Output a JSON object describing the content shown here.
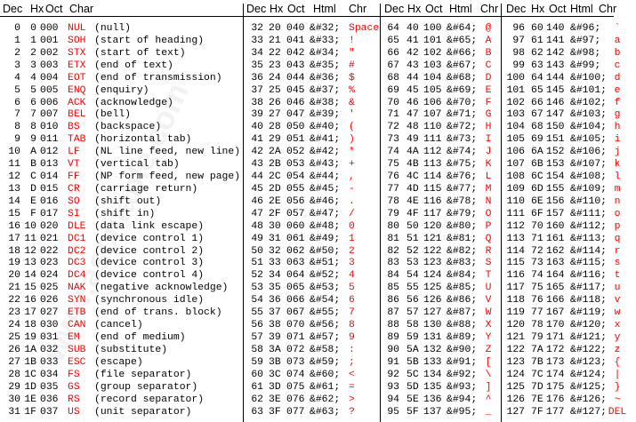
{
  "watermark": "www.asciitable.com",
  "colors": {
    "name": "#ff0000",
    "text": "#000000"
  },
  "headers": {
    "s1": [
      "Dec",
      "Hx",
      "Oct",
      "Char"
    ],
    "s2": [
      "Dec",
      "Hx",
      "Oct",
      "Html",
      "Chr"
    ],
    "s3": [
      "Dec",
      "Hx",
      "Oct",
      "Html",
      "Chr"
    ],
    "s4": [
      "Dec",
      "Hx",
      "Oct",
      "Html",
      "Chr"
    ]
  },
  "control": [
    [
      "0",
      "0",
      "000",
      "NUL",
      "(null)"
    ],
    [
      "1",
      "1",
      "001",
      "SOH",
      "(start of heading)"
    ],
    [
      "2",
      "2",
      "002",
      "STX",
      "(start of text)"
    ],
    [
      "3",
      "3",
      "003",
      "ETX",
      "(end of text)"
    ],
    [
      "4",
      "4",
      "004",
      "EOT",
      "(end of transmission)"
    ],
    [
      "5",
      "5",
      "005",
      "ENQ",
      "(enquiry)"
    ],
    [
      "6",
      "6",
      "006",
      "ACK",
      "(acknowledge)"
    ],
    [
      "7",
      "7",
      "007",
      "BEL",
      "(bell)"
    ],
    [
      "8",
      "8",
      "010",
      "BS",
      "(backspace)"
    ],
    [
      "9",
      "9",
      "011",
      "TAB",
      "(horizontal tab)"
    ],
    [
      "10",
      "A",
      "012",
      "LF",
      "(NL line feed, new line)"
    ],
    [
      "11",
      "B",
      "013",
      "VT",
      "(vertical tab)"
    ],
    [
      "12",
      "C",
      "014",
      "FF",
      "(NP form feed, new page)"
    ],
    [
      "13",
      "D",
      "015",
      "CR",
      "(carriage return)"
    ],
    [
      "14",
      "E",
      "016",
      "SO",
      "(shift out)"
    ],
    [
      "15",
      "F",
      "017",
      "SI",
      "(shift in)"
    ],
    [
      "16",
      "10",
      "020",
      "DLE",
      "(data link escape)"
    ],
    [
      "17",
      "11",
      "021",
      "DC1",
      "(device control 1)"
    ],
    [
      "18",
      "12",
      "022",
      "DC2",
      "(device control 2)"
    ],
    [
      "19",
      "13",
      "023",
      "DC3",
      "(device control 3)"
    ],
    [
      "20",
      "14",
      "024",
      "DC4",
      "(device control 4)"
    ],
    [
      "21",
      "15",
      "025",
      "NAK",
      "(negative acknowledge)"
    ],
    [
      "22",
      "16",
      "026",
      "SYN",
      "(synchronous idle)"
    ],
    [
      "23",
      "17",
      "027",
      "ETB",
      "(end of trans. block)"
    ],
    [
      "24",
      "18",
      "030",
      "CAN",
      "(cancel)"
    ],
    [
      "25",
      "19",
      "031",
      "EM",
      "(end of medium)"
    ],
    [
      "26",
      "1A",
      "032",
      "SUB",
      "(substitute)"
    ],
    [
      "27",
      "1B",
      "033",
      "ESC",
      "(escape)"
    ],
    [
      "28",
      "1C",
      "034",
      "FS",
      "(file separator)"
    ],
    [
      "29",
      "1D",
      "035",
      "GS",
      "(group separator)"
    ],
    [
      "30",
      "1E",
      "036",
      "RS",
      "(record separator)"
    ],
    [
      "31",
      "1F",
      "037",
      "US",
      "(unit separator)"
    ]
  ],
  "printable_chars": [
    "Space",
    "!",
    "\"",
    "#",
    "$",
    "%",
    "&",
    "'",
    "(",
    ")",
    "*",
    "+",
    ",",
    "-",
    ".",
    "/",
    "0",
    "1",
    "2",
    "3",
    "4",
    "5",
    "6",
    "7",
    "8",
    "9",
    ":",
    ";",
    "<",
    "=",
    ">",
    "?",
    "@",
    "A",
    "B",
    "C",
    "D",
    "E",
    "F",
    "G",
    "H",
    "I",
    "J",
    "K",
    "L",
    "M",
    "N",
    "O",
    "P",
    "Q",
    "R",
    "S",
    "T",
    "U",
    "V",
    "W",
    "X",
    "Y",
    "Z",
    "[",
    "\\",
    "]",
    "^",
    "_",
    "`",
    "a",
    "b",
    "c",
    "d",
    "e",
    "f",
    "g",
    "h",
    "i",
    "j",
    "k",
    "l",
    "m",
    "n",
    "o",
    "p",
    "q",
    "r",
    "s",
    "t",
    "u",
    "v",
    "w",
    "x",
    "y",
    "z",
    "{",
    "|",
    "}",
    "~",
    "DEL"
  ]
}
